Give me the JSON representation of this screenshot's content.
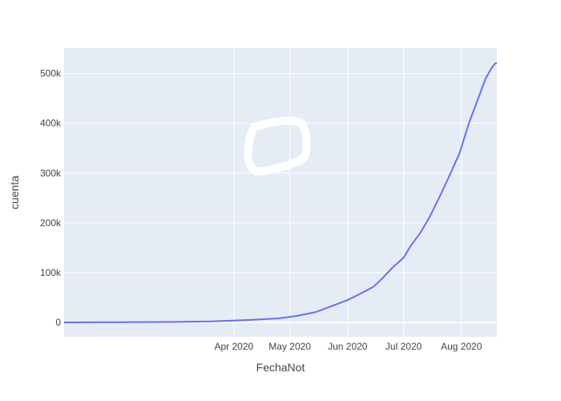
{
  "chart_data": {
    "type": "line",
    "xlabel": "FechaNot",
    "ylabel": "cuenta",
    "x_ticks": [
      {
        "label": "Apr 2020",
        "date": "2020-04-01"
      },
      {
        "label": "May 2020",
        "date": "2020-05-01"
      },
      {
        "label": "Jun 2020",
        "date": "2020-06-01"
      },
      {
        "label": "Jul 2020",
        "date": "2020-07-01"
      },
      {
        "label": "Aug 2020",
        "date": "2020-08-01"
      }
    ],
    "y_ticks": [
      {
        "label": "0",
        "value": 0
      },
      {
        "label": "100k",
        "value": 100000
      },
      {
        "label": "200k",
        "value": 200000
      },
      {
        "label": "300k",
        "value": 300000
      },
      {
        "label": "400k",
        "value": 400000
      },
      {
        "label": "500k",
        "value": 500000
      }
    ],
    "xlim": [
      "2020-01-01",
      "2020-08-20"
    ],
    "ylim": [
      -29000,
      551000
    ],
    "grid": true,
    "series": [
      {
        "color": "#636efa",
        "x": [
          "2020-01-01",
          "2020-02-01",
          "2020-03-01",
          "2020-03-20",
          "2020-04-10",
          "2020-04-25",
          "2020-05-05",
          "2020-05-15",
          "2020-05-25",
          "2020-06-01",
          "2020-06-08",
          "2020-06-15",
          "2020-06-20",
          "2020-06-25",
          "2020-07-01",
          "2020-07-05",
          "2020-07-10",
          "2020-07-15",
          "2020-07-20",
          "2020-07-25",
          "2020-07-31",
          "2020-08-05",
          "2020-08-10",
          "2020-08-14",
          "2020-08-17",
          "2020-08-19",
          "2020-08-20"
        ],
        "y": [
          0,
          500,
          1000,
          2000,
          5000,
          8000,
          13000,
          21000,
          35000,
          45000,
          58000,
          72000,
          90000,
          110000,
          130000,
          155000,
          180000,
          212000,
          250000,
          290000,
          340000,
          400000,
          450000,
          490000,
          510000,
          520000,
          521000
        ]
      }
    ]
  },
  "annotation": {
    "color": "#ffffff"
  }
}
